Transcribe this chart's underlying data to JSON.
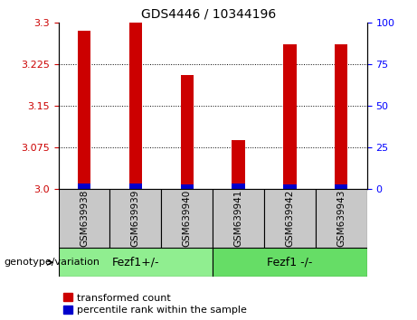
{
  "title": "GDS4446 / 10344196",
  "samples": [
    "GSM639938",
    "GSM639939",
    "GSM639940",
    "GSM639941",
    "GSM639942",
    "GSM639943"
  ],
  "red_values": [
    3.285,
    3.3,
    3.205,
    3.087,
    3.26,
    3.26
  ],
  "blue_values": [
    3.01,
    3.01,
    3.008,
    3.01,
    3.008,
    3.008
  ],
  "red_color": "#cc0000",
  "blue_color": "#0000cc",
  "ylim_left": [
    3.0,
    3.3
  ],
  "ylim_right": [
    0,
    100
  ],
  "yticks_left": [
    3.0,
    3.075,
    3.15,
    3.225,
    3.3
  ],
  "yticks_right": [
    0,
    25,
    50,
    75,
    100
  ],
  "group1_label": "Fezf1+/-",
  "group2_label": "Fezf1 -/-",
  "genotype_label": "genotype/variation",
  "legend1": "transformed count",
  "legend2": "percentile rank within the sample",
  "bar_width": 0.25,
  "group_bg_color": "#c8c8c8",
  "group1_color": "#90ee90",
  "group2_color": "#66dd66",
  "title_fontsize": 10,
  "tick_fontsize": 8,
  "label_fontsize": 8,
  "group_fontsize": 9
}
